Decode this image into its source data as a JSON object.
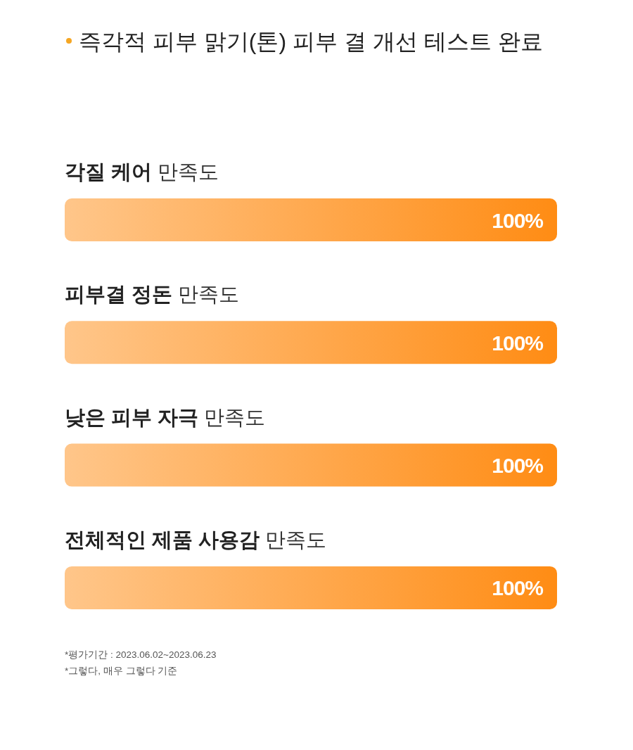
{
  "chart_data": {
    "type": "bar",
    "orientation": "horizontal",
    "title": "즉각적 피부 맑기(톤) 피부 결 개선 테스트 완료",
    "categories": [
      "각질 케어 만족도",
      "피부결 정돈 만족도",
      "낮은 피부 자극 만족도",
      "전체적인 제품 사용감 만족도"
    ],
    "values": [
      100,
      100,
      100,
      100
    ],
    "value_labels": [
      "100%",
      "100%",
      "100%",
      "100%"
    ],
    "color": "#ff8c14",
    "annotations": [
      "*평가기간 : 2023.06.02~2023.06.23",
      "*그렇다, 매우 그렇다 기준"
    ]
  }
}
